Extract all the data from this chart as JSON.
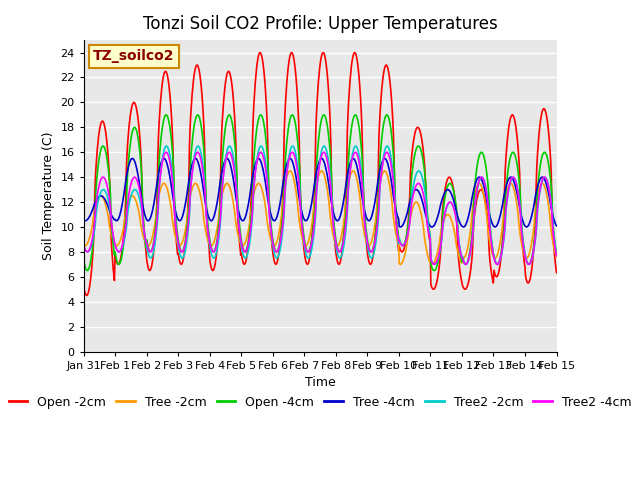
{
  "title": "Tonzi Soil CO2 Profile: Upper Temperatures",
  "xlabel": "Time",
  "ylabel": "Soil Temperature (C)",
  "annotation": "TZ_soilco2",
  "ylim": [
    0,
    25
  ],
  "bg_color": "#e8e8e8",
  "fig_bg": "#ffffff",
  "series": [
    {
      "label": "Open -2cm",
      "color": "#ff0000"
    },
    {
      "label": "Tree -2cm",
      "color": "#ff9900"
    },
    {
      "label": "Open -4cm",
      "color": "#00cc00"
    },
    {
      "label": "Tree -4cm",
      "color": "#0000cc"
    },
    {
      "label": "Tree2 -2cm",
      "color": "#00cccc"
    },
    {
      "label": "Tree2 -4cm",
      "color": "#ff00ff"
    }
  ],
  "xtick_labels": [
    "Jan 31",
    "Feb 1",
    "Feb 2",
    "Feb 3",
    "Feb 4",
    "Feb 5",
    "Feb 6",
    "Feb 7",
    "Feb 8",
    "Feb 9",
    "Feb 10",
    "Feb 11",
    "Feb 12",
    "Feb 13",
    "Feb 14",
    "Feb 15"
  ],
  "legend_fontsize": 9,
  "title_fontsize": 12,
  "annotation_fontsize": 10
}
